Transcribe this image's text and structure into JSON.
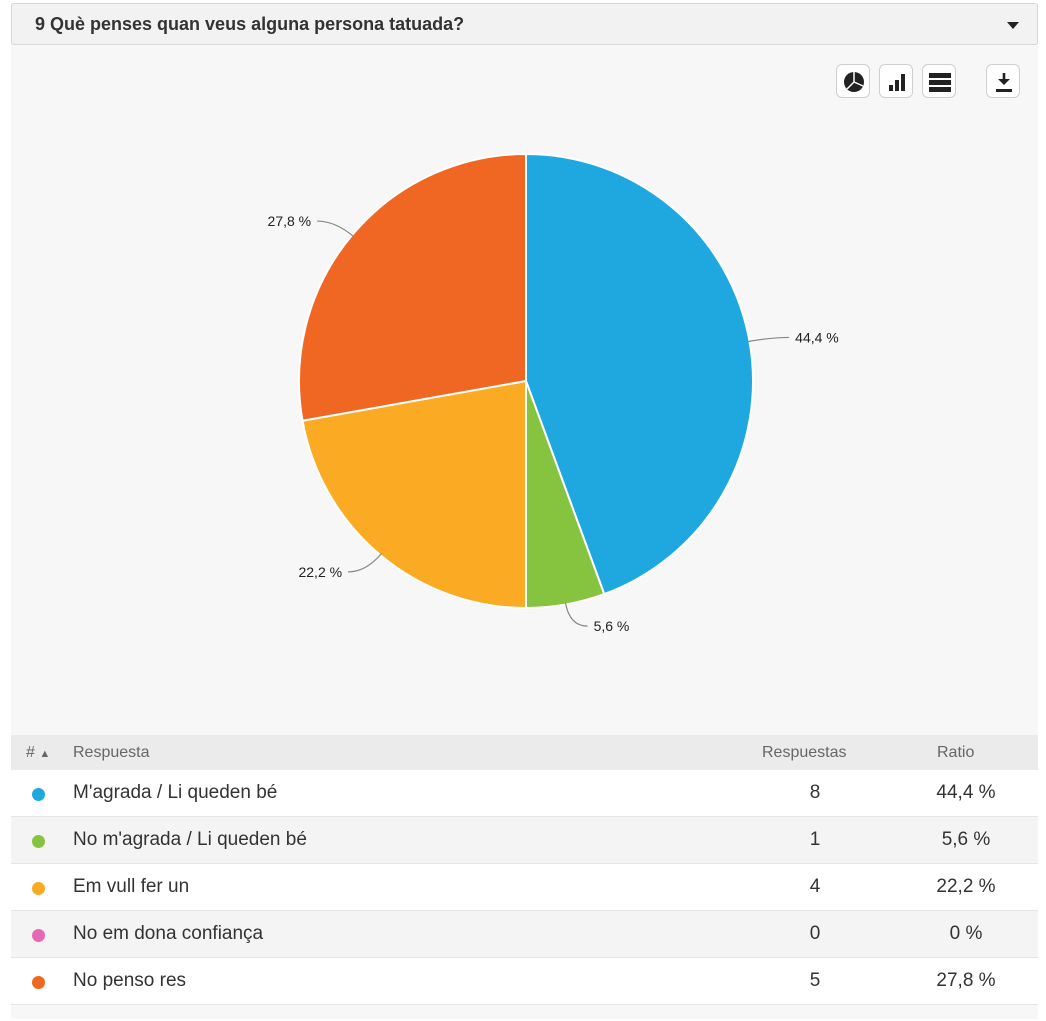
{
  "header": {
    "title": "9 Què penses quan veus alguna persona tatuada?"
  },
  "toolbar": {
    "buttons": [
      {
        "icon": "pie-chart-icon"
      },
      {
        "icon": "bar-chart-icon"
      },
      {
        "icon": "table-icon"
      },
      {
        "icon": "download-icon"
      }
    ]
  },
  "chart_data": {
    "type": "pie",
    "slices": [
      {
        "label": "M'agrada / Li queden bé",
        "value": 44.4,
        "display": "44,4 %",
        "color": "#1fa8e0"
      },
      {
        "label": "No m'agrada / Li queden bé",
        "value": 5.6,
        "display": "5,6 %",
        "color": "#86c440"
      },
      {
        "label": "Em vull fer un",
        "value": 22.2,
        "display": "22,2 %",
        "color": "#fbaa24"
      },
      {
        "label": "No em dona confiança",
        "value": 0,
        "display": "0 %",
        "color": "#e46ab5"
      },
      {
        "label": "No penso res",
        "value": 27.8,
        "display": "27,8 %",
        "color": "#f06723"
      }
    ]
  },
  "table": {
    "headers": {
      "index": "#",
      "answer": "Respuesta",
      "count": "Respuestas",
      "ratio": "Ratio"
    },
    "rows": [
      {
        "label": "M'agrada / Li queden bé",
        "count": "8",
        "ratio": "44,4 %",
        "color": "#1fa8e0"
      },
      {
        "label": "No m'agrada / Li queden bé",
        "count": "1",
        "ratio": "5,6 %",
        "color": "#86c440"
      },
      {
        "label": "Em vull fer un",
        "count": "4",
        "ratio": "22,2 %",
        "color": "#fbaa24"
      },
      {
        "label": "No em dona confiança",
        "count": "0",
        "ratio": "0 %",
        "color": "#e46ab5"
      },
      {
        "label": "No penso res",
        "count": "5",
        "ratio": "27,8 %",
        "color": "#f06723"
      }
    ]
  }
}
